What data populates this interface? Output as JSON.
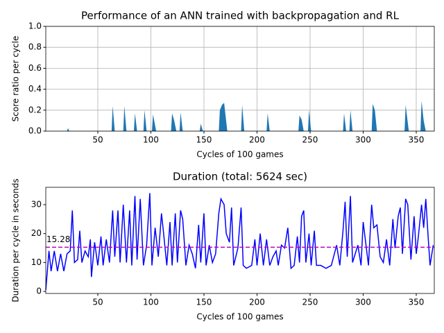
{
  "chart_data": [
    {
      "type": "area",
      "title": "Performance of an ANN trained with backpropagation and RL",
      "x_label": "Cycles of 100 games",
      "y_label": "Score ratio per cycle",
      "color": "#1f77b4",
      "grid": true,
      "xlim": [
        1,
        367
      ],
      "ylim": [
        0,
        1
      ],
      "xticks": [
        50,
        100,
        150,
        200,
        250,
        300,
        350
      ],
      "yticks": [
        {
          "value": 0,
          "label": "0.0"
        },
        {
          "value": 0.2,
          "label": "0.2"
        },
        {
          "value": 0.4,
          "label": "0.4"
        },
        {
          "value": 0.6,
          "label": "0.6"
        },
        {
          "value": 0.8,
          "label": "0.8"
        },
        {
          "value": 1,
          "label": "1.0"
        }
      ],
      "x": [
        1,
        21,
        22,
        23,
        63,
        64,
        66,
        74,
        75,
        77,
        84,
        85,
        87,
        93,
        94,
        96,
        101,
        102,
        105,
        119,
        120,
        122,
        124,
        127,
        128,
        130,
        146,
        147,
        149,
        164,
        165,
        167,
        169,
        172,
        185,
        186,
        188,
        209,
        210,
        212,
        239,
        240,
        242,
        244,
        248,
        249,
        251,
        281,
        282,
        284,
        287,
        288,
        290,
        308,
        309,
        311,
        313,
        339,
        340,
        343,
        354,
        355,
        357,
        359,
        367
      ],
      "values": [
        0,
        0,
        0.03,
        0,
        0,
        0.24,
        0,
        0,
        0.24,
        0,
        0,
        0.17,
        0,
        0,
        0.2,
        0,
        0,
        0.16,
        0,
        0,
        0.17,
        0.1,
        0,
        0,
        0.18,
        0,
        0,
        0.07,
        0,
        0,
        0.2,
        0.25,
        0.27,
        0,
        0,
        0.25,
        0,
        0,
        0.17,
        0,
        0,
        0.15,
        0.11,
        0,
        0,
        0.2,
        0,
        0,
        0.17,
        0,
        0,
        0.2,
        0,
        0,
        0.26,
        0.2,
        0,
        0,
        0.25,
        0,
        0,
        0.29,
        0.1,
        0,
        0
      ]
    },
    {
      "type": "line",
      "title": "Duration (total: 5624 sec)",
      "x_label": "Cycles of 100 games",
      "y_label": "Duration per cycle in seconds",
      "color": "#0000ff",
      "grid": false,
      "mean": 15.28,
      "mean_color": "#bf00bf",
      "xlim": [
        1,
        367
      ],
      "ylim": [
        -0.7,
        36
      ],
      "xticks": [
        50,
        100,
        150,
        200,
        250,
        300,
        350
      ],
      "yticks": [
        0,
        10,
        20,
        30
      ],
      "x": [
        1,
        4,
        6,
        9,
        12,
        15,
        18,
        21,
        24,
        26,
        28,
        31,
        33,
        35,
        38,
        41,
        43,
        44,
        47,
        50,
        53,
        55,
        58,
        61,
        64,
        66,
        69,
        71,
        74,
        77,
        80,
        82,
        85,
        87,
        90,
        93,
        96,
        99,
        101,
        104,
        107,
        110,
        112,
        115,
        118,
        120,
        123,
        125,
        128,
        130,
        133,
        136,
        139,
        142,
        145,
        147,
        150,
        152,
        155,
        158,
        161,
        164,
        166,
        169,
        171,
        174,
        176,
        178,
        182,
        185,
        187,
        190,
        195,
        198,
        200,
        203,
        206,
        209,
        212,
        215,
        218,
        220,
        223,
        226,
        229,
        232,
        235,
        238,
        240,
        242,
        244,
        246,
        249,
        251,
        254,
        256,
        260,
        265,
        270,
        275,
        278,
        281,
        283,
        285,
        288,
        290,
        295,
        298,
        300,
        302,
        305,
        308,
        310,
        313,
        316,
        319,
        322,
        325,
        328,
        330,
        333,
        335,
        337,
        340,
        342,
        345,
        348,
        350,
        352,
        355,
        357,
        359,
        361,
        363,
        366
      ],
      "values": [
        0.5,
        14,
        7,
        14,
        7,
        13,
        7,
        13,
        14,
        28,
        10,
        11,
        21,
        10,
        14,
        12,
        18,
        5,
        17,
        9,
        19,
        9,
        18,
        10,
        28,
        12,
        28,
        10,
        30,
        10,
        28,
        9,
        33,
        11,
        32,
        9,
        16,
        34,
        9,
        22,
        12,
        27,
        20,
        9,
        24,
        9,
        27,
        10,
        28,
        25,
        9,
        16,
        13,
        8,
        23,
        10,
        27,
        9,
        16,
        10,
        13,
        27,
        32,
        30,
        20,
        17,
        29,
        9,
        15,
        29,
        9,
        8,
        9,
        18,
        9,
        20,
        9,
        18,
        9,
        12,
        14,
        9,
        16,
        15,
        22,
        8,
        9,
        19,
        10,
        26,
        28,
        10,
        20,
        9,
        21,
        9,
        9,
        8,
        9,
        16,
        9,
        21,
        31,
        12,
        33,
        10,
        16,
        9,
        24,
        18,
        9,
        30,
        22,
        23,
        12,
        10,
        18,
        9,
        25,
        15,
        26,
        29,
        13,
        32,
        30,
        11,
        26,
        13,
        19,
        30,
        22,
        32,
        20,
        9,
        16
      ]
    }
  ]
}
